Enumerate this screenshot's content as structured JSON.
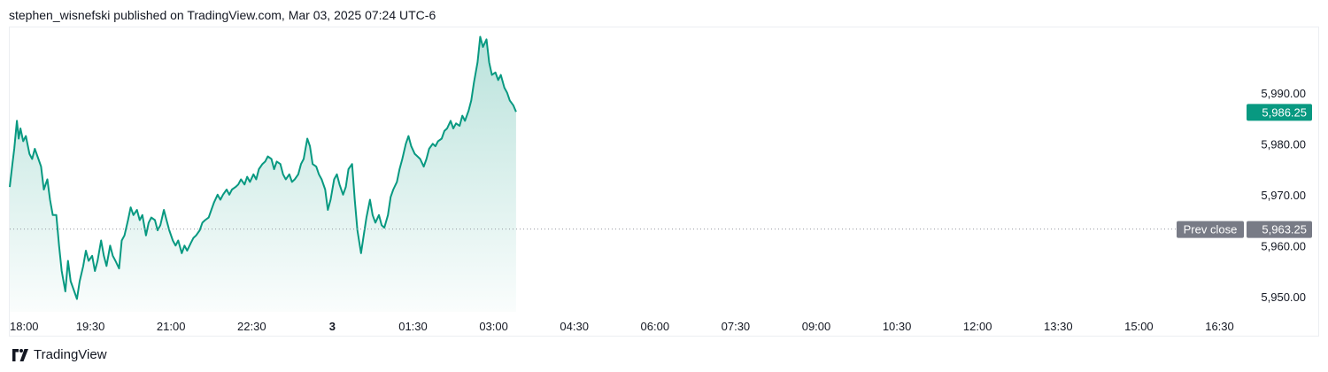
{
  "header": {
    "publisher": "stephen_wisnefski published on TradingView.com, Mar 03, 2025 07:24 UTC-6"
  },
  "footer": {
    "brand": "TradingView"
  },
  "colors": {
    "line": "#089981",
    "fill_top": "#089981",
    "badge_last": "#089981",
    "badge_prev": "#787b86",
    "prev_close_line": "#9598a1"
  },
  "chart_data": {
    "type": "area",
    "title": "",
    "xlabel": "",
    "ylabel": "",
    "ylim": [
      5947,
      6003
    ],
    "x_tick_labels": [
      {
        "label": "18:00",
        "bold": false
      },
      {
        "label": "19:30",
        "bold": false
      },
      {
        "label": "21:00",
        "bold": false
      },
      {
        "label": "22:30",
        "bold": false
      },
      {
        "label": "3",
        "bold": true
      },
      {
        "label": "01:30",
        "bold": false
      },
      {
        "label": "03:00",
        "bold": false
      },
      {
        "label": "04:30",
        "bold": false
      },
      {
        "label": "06:00",
        "bold": false
      },
      {
        "label": "07:30",
        "bold": false
      },
      {
        "label": "09:00",
        "bold": false
      },
      {
        "label": "10:30",
        "bold": false
      },
      {
        "label": "12:00",
        "bold": false
      },
      {
        "label": "13:30",
        "bold": false
      },
      {
        "label": "15:00",
        "bold": false
      },
      {
        "label": "16:30",
        "bold": false
      }
    ],
    "y_ticks": [
      5950,
      5960,
      5970,
      5980,
      5990
    ],
    "y_tick_labels": [
      "5,950.00",
      "5,960.00",
      "5,970.00",
      "5,980.00",
      "5,990.00"
    ],
    "x_unit": "minutes after 18:00",
    "last_price": 5986.25,
    "last_price_label": "5,986.25",
    "prev_close": 5963.25,
    "prev_close_label": "5,963.25",
    "prev_close_text": "Prev close",
    "series": [
      {
        "points": [
          [
            0,
            5971.5
          ],
          [
            3,
            5976
          ],
          [
            5,
            5979
          ],
          [
            8,
            5984.5
          ],
          [
            10,
            5981
          ],
          [
            12,
            5983
          ],
          [
            15,
            5980.5
          ],
          [
            18,
            5981.5
          ],
          [
            22,
            5978
          ],
          [
            25,
            5977
          ],
          [
            28,
            5979
          ],
          [
            32,
            5977
          ],
          [
            35,
            5975.5
          ],
          [
            38,
            5971
          ],
          [
            42,
            5973
          ],
          [
            45,
            5969
          ],
          [
            48,
            5966
          ],
          [
            52,
            5966
          ],
          [
            55,
            5960
          ],
          [
            58,
            5955
          ],
          [
            62,
            5951
          ],
          [
            65,
            5957
          ],
          [
            68,
            5953
          ],
          [
            72,
            5951
          ],
          [
            75,
            5949.5
          ],
          [
            78,
            5953
          ],
          [
            82,
            5956
          ],
          [
            85,
            5959
          ],
          [
            88,
            5957
          ],
          [
            92,
            5958
          ],
          [
            95,
            5955
          ],
          [
            98,
            5957
          ],
          [
            102,
            5961
          ],
          [
            105,
            5958
          ],
          [
            108,
            5956
          ],
          [
            112,
            5960
          ],
          [
            115,
            5958
          ],
          [
            118,
            5957
          ],
          [
            122,
            5955.5
          ],
          [
            125,
            5961
          ],
          [
            128,
            5962
          ],
          [
            132,
            5965
          ],
          [
            135,
            5967.5
          ],
          [
            138,
            5966
          ],
          [
            142,
            5967
          ],
          [
            145,
            5965
          ],
          [
            148,
            5966
          ],
          [
            152,
            5962
          ],
          [
            155,
            5964.5
          ],
          [
            158,
            5965.5
          ],
          [
            162,
            5965
          ],
          [
            165,
            5963
          ],
          [
            168,
            5964
          ],
          [
            172,
            5967
          ],
          [
            175,
            5965
          ],
          [
            178,
            5963
          ],
          [
            182,
            5961
          ],
          [
            185,
            5960
          ],
          [
            188,
            5961
          ],
          [
            192,
            5958.5
          ],
          [
            195,
            5960
          ],
          [
            198,
            5959
          ],
          [
            202,
            5960.5
          ],
          [
            205,
            5961.5
          ],
          [
            208,
            5962
          ],
          [
            212,
            5963
          ],
          [
            215,
            5964.5
          ],
          [
            218,
            5965
          ],
          [
            222,
            5965.5
          ],
          [
            225,
            5967
          ],
          [
            228,
            5968.5
          ],
          [
            232,
            5970
          ],
          [
            235,
            5969
          ],
          [
            238,
            5970
          ],
          [
            242,
            5971
          ],
          [
            245,
            5970
          ],
          [
            248,
            5971
          ],
          [
            252,
            5971.5
          ],
          [
            255,
            5972
          ],
          [
            258,
            5973
          ],
          [
            262,
            5972
          ],
          [
            265,
            5973.5
          ],
          [
            268,
            5972.5
          ],
          [
            272,
            5974
          ],
          [
            275,
            5973
          ],
          [
            278,
            5975
          ],
          [
            282,
            5976
          ],
          [
            285,
            5976.5
          ],
          [
            288,
            5977.5
          ],
          [
            292,
            5977
          ],
          [
            295,
            5975
          ],
          [
            298,
            5976.5
          ],
          [
            302,
            5976
          ],
          [
            305,
            5974
          ],
          [
            308,
            5973
          ],
          [
            312,
            5974
          ],
          [
            315,
            5972.5
          ],
          [
            318,
            5973
          ],
          [
            322,
            5974
          ],
          [
            325,
            5976
          ],
          [
            328,
            5977
          ],
          [
            332,
            5981
          ],
          [
            335,
            5979.5
          ],
          [
            338,
            5976
          ],
          [
            342,
            5975.5
          ],
          [
            345,
            5974
          ],
          [
            348,
            5973
          ],
          [
            352,
            5971
          ],
          [
            355,
            5967
          ],
          [
            358,
            5969
          ],
          [
            362,
            5973
          ],
          [
            365,
            5974
          ],
          [
            368,
            5972
          ],
          [
            372,
            5970
          ],
          [
            375,
            5971.5
          ],
          [
            378,
            5975
          ],
          [
            382,
            5976
          ],
          [
            385,
            5969
          ],
          [
            388,
            5963
          ],
          [
            392,
            5958.5
          ],
          [
            395,
            5962
          ],
          [
            398,
            5965.5
          ],
          [
            402,
            5969
          ],
          [
            405,
            5966
          ],
          [
            408,
            5964.5
          ],
          [
            412,
            5966
          ],
          [
            415,
            5964
          ],
          [
            418,
            5963.5
          ],
          [
            422,
            5966
          ],
          [
            425,
            5969.5
          ],
          [
            428,
            5971
          ],
          [
            432,
            5972.5
          ],
          [
            435,
            5975
          ],
          [
            438,
            5977
          ],
          [
            442,
            5980
          ],
          [
            445,
            5981.5
          ],
          [
            448,
            5979.5
          ],
          [
            452,
            5978
          ],
          [
            455,
            5977.5
          ],
          [
            458,
            5977
          ],
          [
            462,
            5975.5
          ],
          [
            465,
            5977
          ],
          [
            468,
            5979
          ],
          [
            472,
            5980
          ],
          [
            475,
            5979.5
          ],
          [
            478,
            5980.5
          ],
          [
            482,
            5981
          ],
          [
            485,
            5982.5
          ],
          [
            488,
            5983
          ],
          [
            492,
            5984.5
          ],
          [
            495,
            5983
          ],
          [
            498,
            5984
          ],
          [
            502,
            5983.5
          ],
          [
            505,
            5985.5
          ],
          [
            508,
            5984.5
          ],
          [
            512,
            5986.5
          ],
          [
            515,
            5988.5
          ],
          [
            518,
            5992
          ],
          [
            522,
            5996
          ],
          [
            525,
            6001
          ],
          [
            528,
            5999
          ],
          [
            532,
            6000.5
          ],
          [
            535,
            5996
          ],
          [
            538,
            5993.5
          ],
          [
            542,
            5994
          ],
          [
            545,
            5992.5
          ],
          [
            548,
            5993.5
          ],
          [
            552,
            5991
          ],
          [
            555,
            5990
          ],
          [
            558,
            5988.5
          ],
          [
            562,
            5987.5
          ],
          [
            565,
            5986.25
          ]
        ]
      }
    ]
  }
}
